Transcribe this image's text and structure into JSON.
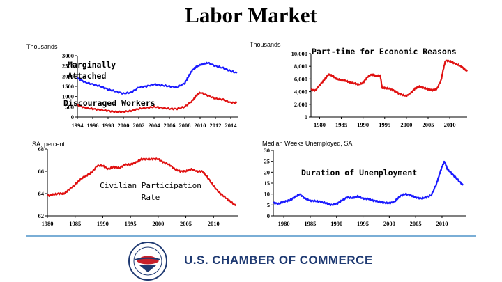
{
  "page": {
    "title": "Labor Market"
  },
  "footer": {
    "org_name": "U.S. CHAMBER OF COMMERCE"
  },
  "chart_data": [
    {
      "id": "marginally",
      "type": "line",
      "unit_label": "Thousands",
      "annotations": [
        "Marginally",
        "Attached",
        "Discouraged Workers"
      ],
      "xlim": [
        1994,
        2015
      ],
      "ylim": [
        0,
        3000
      ],
      "xticks": [
        1994,
        1996,
        1998,
        2000,
        2002,
        2004,
        2006,
        2008,
        2010,
        2012,
        2014
      ],
      "yticks": [
        0,
        500,
        1000,
        1500,
        2000,
        2500,
        3000
      ],
      "series": [
        {
          "color": "#1a1aff",
          "x": [
            1994,
            1995,
            1996,
            1997,
            1998,
            1999,
            2000,
            2001,
            2002,
            2003,
            2004,
            2005,
            2006,
            2007,
            2008,
            2008.5,
            2009,
            2009.5,
            2010,
            2010.5,
            2011,
            2012,
            2013,
            2014,
            2014.8
          ],
          "y": [
            1900,
            1700,
            1600,
            1500,
            1350,
            1250,
            1150,
            1200,
            1450,
            1500,
            1600,
            1550,
            1500,
            1450,
            1650,
            2000,
            2300,
            2450,
            2550,
            2600,
            2650,
            2500,
            2400,
            2250,
            2150
          ]
        },
        {
          "color": "#e01010",
          "x": [
            1994,
            1995,
            1996,
            1997,
            1998,
            1999,
            2000,
            2001,
            2002,
            2003,
            2004,
            2005,
            2006,
            2007,
            2008,
            2009,
            2009.5,
            2010,
            2011,
            2012,
            2013,
            2014,
            2014.8
          ],
          "y": [
            600,
            450,
            400,
            350,
            300,
            250,
            250,
            300,
            400,
            450,
            500,
            450,
            400,
            400,
            500,
            800,
            1050,
            1200,
            1050,
            900,
            850,
            700,
            700
          ]
        }
      ]
    },
    {
      "id": "parttime",
      "type": "line",
      "unit_label": "Thousands",
      "annotations": [
        "Part-time for Economic Reasons"
      ],
      "xlim": [
        1978,
        2014
      ],
      "ylim": [
        0,
        10000
      ],
      "xticks": [
        1980,
        1985,
        1990,
        1995,
        2000,
        2005,
        2010
      ],
      "yticks": [
        0,
        2000,
        4000,
        6000,
        8000,
        10000
      ],
      "ytick_labels": [
        "0",
        "2,000",
        "4,000",
        "6,000",
        "8,000",
        "10,000"
      ],
      "series": [
        {
          "color": "#e01010",
          "x": [
            1978,
            1979,
            1980,
            1981,
            1982,
            1983,
            1984,
            1985,
            1986,
            1987,
            1988,
            1989,
            1990,
            1991,
            1992,
            1992.5,
            1993,
            1994,
            1994.4,
            1995,
            1996,
            1997,
            1998,
            1999,
            2000,
            2001,
            2002,
            2003,
            2004,
            2005,
            2006,
            2007,
            2008,
            2008.5,
            2009,
            2010,
            2011,
            2012,
            2013,
            2014
          ],
          "y": [
            4300,
            4200,
            5000,
            5800,
            6700,
            6500,
            6000,
            5800,
            5700,
            5500,
            5300,
            5100,
            5400,
            6300,
            6700,
            6600,
            6500,
            6500,
            4600,
            4600,
            4500,
            4200,
            3800,
            3500,
            3300,
            3800,
            4500,
            4800,
            4600,
            4400,
            4200,
            4400,
            5800,
            7500,
            8900,
            8800,
            8500,
            8200,
            7800,
            7200
          ]
        }
      ]
    },
    {
      "id": "participation",
      "type": "line",
      "unit_label": "SA, percent",
      "annotations": [
        "Civilian Participation",
        "Rate"
      ],
      "xlim": [
        1980,
        2014.5
      ],
      "ylim": [
        62,
        68
      ],
      "xticks": [
        1980,
        1985,
        1990,
        1995,
        2000,
        2005,
        2010
      ],
      "yticks": [
        62,
        64,
        66,
        68
      ],
      "series": [
        {
          "color": "#e01010",
          "x": [
            1980,
            1981,
            1982,
            1983,
            1984,
            1985,
            1986,
            1987,
            1988,
            1989,
            1990,
            1991,
            1992,
            1993,
            1994,
            1995,
            1996,
            1997,
            1998,
            1999,
            2000,
            2001,
            2002,
            2003,
            2004,
            2005,
            2006,
            2007,
            2008,
            2009,
            2010,
            2011,
            2012,
            2013,
            2014
          ],
          "y": [
            63.8,
            63.9,
            64.0,
            64.0,
            64.4,
            64.8,
            65.3,
            65.6,
            65.9,
            66.5,
            66.5,
            66.2,
            66.4,
            66.3,
            66.6,
            66.6,
            66.8,
            67.1,
            67.1,
            67.1,
            67.1,
            66.8,
            66.6,
            66.2,
            66.0,
            66.0,
            66.2,
            66.0,
            66.0,
            65.4,
            64.7,
            64.1,
            63.7,
            63.3,
            62.9
          ]
        }
      ]
    },
    {
      "id": "duration",
      "type": "line",
      "unit_label": "Median Weeks Unemployed, SA",
      "annotations": [
        "Duration of Unemployment"
      ],
      "xlim": [
        1978,
        2014.5
      ],
      "ylim": [
        0,
        30
      ],
      "xticks": [
        1980,
        1985,
        1990,
        1995,
        2000,
        2005,
        2010
      ],
      "yticks": [
        0,
        5,
        10,
        15,
        20,
        25,
        30
      ],
      "series": [
        {
          "color": "#1a1aff",
          "x": [
            1978,
            1979,
            1980,
            1981,
            1982,
            1983,
            1984,
            1985,
            1986,
            1987,
            1988,
            1989,
            1990,
            1991,
            1992,
            1993,
            1994,
            1995,
            1996,
            1997,
            1998,
            1999,
            2000,
            2001,
            2002,
            2003,
            2004,
            2005,
            2006,
            2007,
            2008,
            2009,
            2009.5,
            2010,
            2010.5,
            2011,
            2012,
            2013,
            2014
          ],
          "y": [
            6.0,
            5.5,
            6.5,
            7.0,
            8.5,
            10.0,
            8.0,
            7.0,
            6.8,
            6.5,
            5.8,
            5.0,
            5.5,
            7.0,
            8.5,
            8.2,
            9.0,
            8.0,
            7.8,
            7.0,
            6.5,
            6.0,
            5.8,
            6.5,
            9.0,
            10.0,
            9.5,
            8.5,
            8.0,
            8.5,
            9.5,
            15.0,
            19.0,
            22.5,
            25.0,
            21.5,
            19.0,
            16.5,
            14.0
          ]
        }
      ]
    }
  ]
}
